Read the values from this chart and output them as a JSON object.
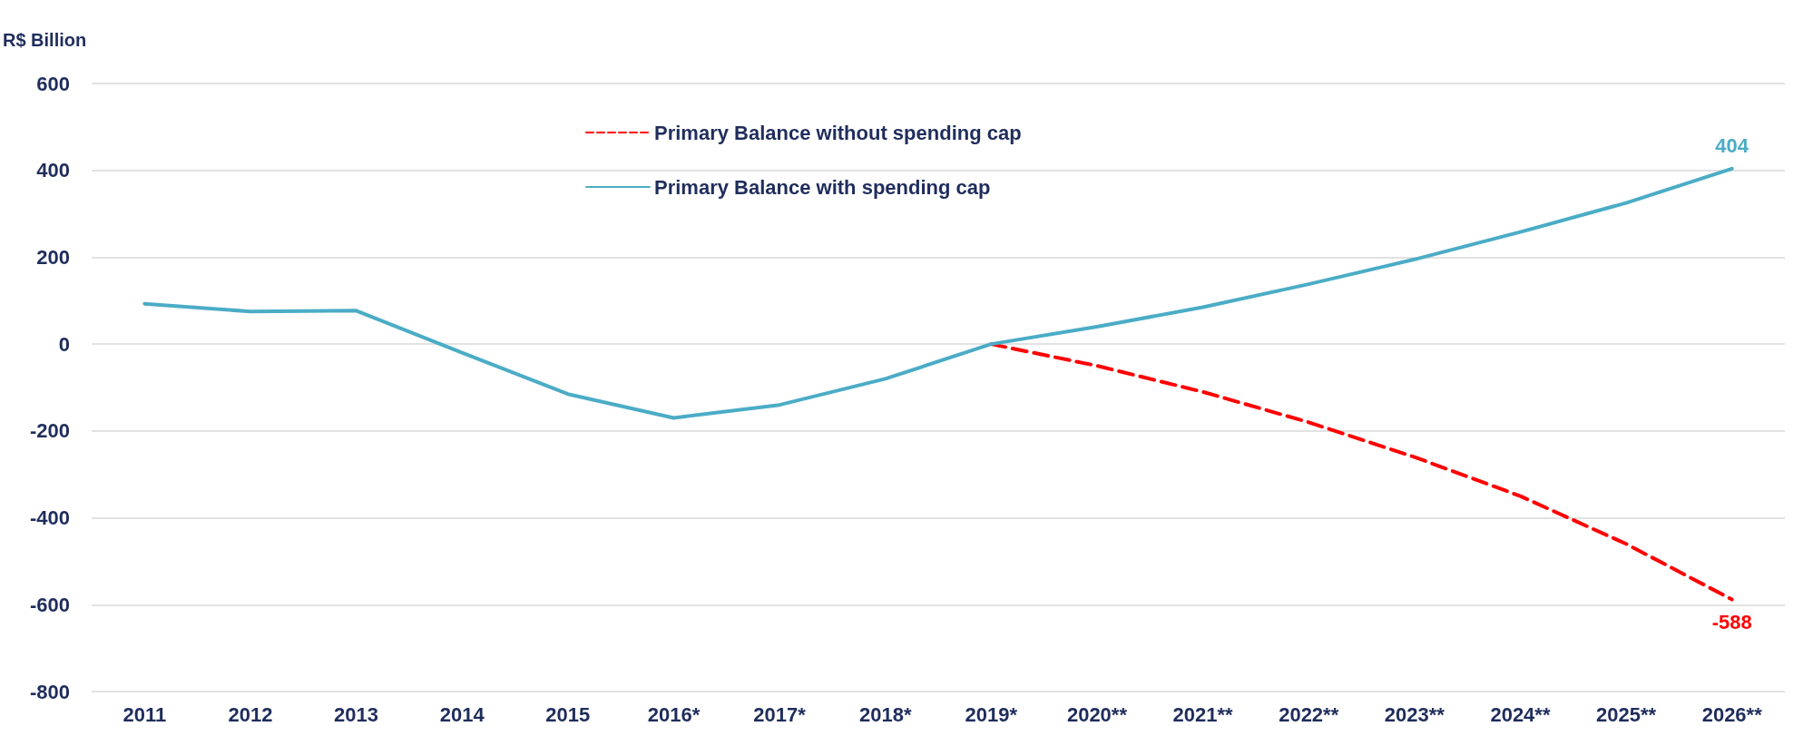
{
  "chart_data": {
    "type": "line",
    "ylabel": "R$ Billion",
    "categories": [
      "2011",
      "2012",
      "2013",
      "2014",
      "2015",
      "2016*",
      "2017*",
      "2018*",
      "2019*",
      "2020**",
      "2021**",
      "2022**",
      "2023**",
      "2024**",
      "2025**",
      "2026**"
    ],
    "series": [
      {
        "name": "Primary Balance without spending cap",
        "color": "#ff0000",
        "line_style": "dashed",
        "values": [
          null,
          null,
          null,
          null,
          null,
          null,
          null,
          null,
          0,
          -50,
          -110,
          -180,
          -260,
          -350,
          -460,
          -588
        ],
        "value_labels": [
          null,
          null,
          null,
          null,
          null,
          null,
          null,
          null,
          null,
          null,
          null,
          null,
          null,
          null,
          null,
          "-588"
        ]
      },
      {
        "name": "Primary Balance with spending cap",
        "color": "#4bacc6",
        "line_style": "solid",
        "values": [
          93,
          75,
          77,
          -20,
          -115,
          -170,
          -140,
          -80,
          0,
          40,
          85,
          138,
          195,
          258,
          325,
          404
        ],
        "value_labels": [
          null,
          null,
          null,
          null,
          null,
          null,
          null,
          null,
          null,
          null,
          null,
          null,
          null,
          null,
          null,
          "404"
        ]
      }
    ],
    "ylim": [
      -800,
      600
    ],
    "yticks": [
      -800,
      -600,
      -400,
      -200,
      0,
      200,
      400,
      600
    ],
    "grid": "y",
    "legend": "top",
    "marker": "none"
  }
}
